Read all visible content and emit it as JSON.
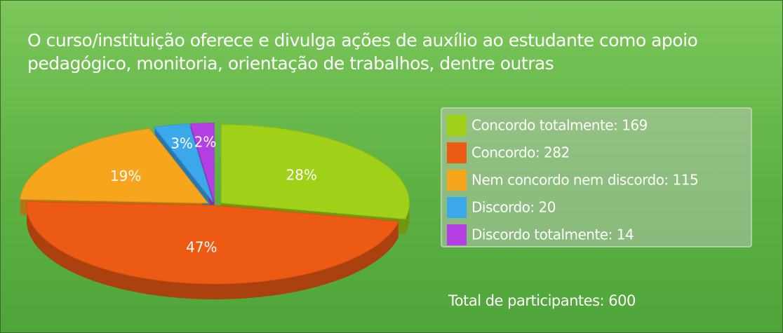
{
  "chart_data": {
    "type": "pie",
    "title": "O curso/instituição oferece e divulga ações de auxílio ao estudante como apoio pedagógico, monitoria, orientação de trabalhos, dentre outras",
    "categories": [
      "Concordo totalmente: 169",
      "Concordo: 282",
      "Nem concordo nem discordo: 115",
      "Discordo: 20",
      "Discordo totalmente: 14"
    ],
    "values": [
      28,
      47,
      19,
      3,
      2
    ],
    "value_labels": [
      "28%",
      "47%",
      "19%",
      "3%",
      "2%"
    ],
    "colors": [
      "#a0d018",
      "#ec5a14",
      "#f7a51c",
      "#3ca8ec",
      "#b440e4"
    ],
    "total_label": "Total de participantes: 600",
    "legend": "right"
  }
}
